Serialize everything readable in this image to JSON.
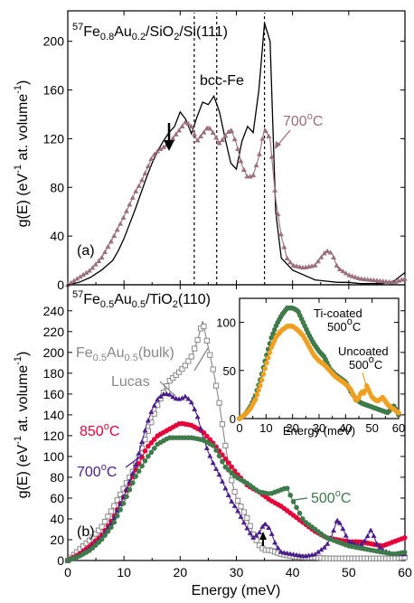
{
  "chart_data": [
    {
      "type": "line",
      "panel_label": "(a)",
      "title_html": {
        "iso": "57",
        "pre": "Fe",
        "s1": "0.8",
        "mid": "Au",
        "s2": "0.2",
        "post": "/SiO",
        "s3": "2",
        "tail": "/Si(111)"
      },
      "ylabel": "g(E) (eV⁻¹ at. volume⁻¹)",
      "ylabel_parts": {
        "a": "g(E) (eV",
        "b": "-1",
        "c": " at. volume",
        "d": "-1",
        "e": ")"
      },
      "xlim": [
        0,
        60
      ],
      "ylim": [
        0,
        225
      ],
      "yticks": [
        0,
        40,
        80,
        120,
        160,
        200
      ],
      "xticks": [
        0,
        10,
        20,
        30,
        40,
        50,
        60
      ],
      "vlines": [
        22.5,
        26.5,
        35
      ],
      "annotations": {
        "bcc": "bcc-Fe",
        "temp": "700",
        "deg": "o",
        "unit": "C"
      },
      "series": [
        {
          "color": "#000000",
          "marker": "none",
          "x": [
            0,
            2,
            4,
            6,
            8,
            9,
            10,
            11,
            12,
            13,
            14,
            15,
            16,
            17,
            18,
            19,
            20,
            21,
            22,
            23,
            24,
            25,
            26,
            27,
            28,
            29,
            30,
            31,
            32,
            33,
            34,
            35,
            36,
            37,
            38,
            40,
            42,
            44,
            46,
            48,
            50,
            52,
            54,
            56,
            58,
            60
          ],
          "y": [
            0,
            2,
            6,
            12,
            20,
            28,
            38,
            50,
            62,
            75,
            88,
            100,
            110,
            118,
            125,
            130,
            142,
            136,
            124,
            138,
            150,
            148,
            155,
            142,
            120,
            100,
            95,
            118,
            130,
            125,
            160,
            215,
            200,
            60,
            22,
            12,
            8,
            4,
            3,
            2,
            2,
            1,
            1,
            1,
            3,
            10
          ]
        },
        {
          "color": "#9C6F7F",
          "marker": "triangle",
          "x": [
            0,
            2,
            4,
            6,
            8,
            10,
            11,
            12,
            13,
            14,
            15,
            16,
            17,
            18,
            19,
            20,
            21,
            22,
            23,
            24,
            25,
            26,
            27,
            28,
            29,
            30,
            31,
            32,
            33,
            34,
            35,
            36,
            37,
            38,
            39,
            40,
            42,
            44,
            45,
            46,
            47,
            48,
            50,
            52,
            54,
            56,
            58,
            60
          ],
          "y": [
            0,
            6,
            12,
            22,
            38,
            56,
            66,
            76,
            84,
            94,
            105,
            110,
            113,
            116,
            122,
            128,
            134,
            130,
            118,
            124,
            130,
            124,
            116,
            122,
            128,
            116,
            98,
            88,
            90,
            105,
            128,
            120,
            70,
            40,
            22,
            16,
            14,
            16,
            22,
            28,
            26,
            14,
            8,
            5,
            4,
            3,
            2,
            5
          ]
        }
      ]
    },
    {
      "type": "line",
      "panel_label": "(b)",
      "title_html": {
        "iso": "57",
        "pre": "Fe",
        "s1": "0.5",
        "mid": "Au",
        "s2": "0.5",
        "post": "/TiO",
        "s3": "2",
        "tail": "(110)"
      },
      "ylabel_parts": {
        "a": "g(E) (eV",
        "b": "-1",
        "c": " at. volume",
        "d": "-1",
        "e": ")"
      },
      "xlabel": "Energy (meV)",
      "xlim": [
        0,
        60
      ],
      "ylim": [
        0,
        265
      ],
      "yticks": [
        0,
        20,
        40,
        60,
        80,
        100,
        120,
        140,
        160,
        180,
        200,
        220,
        240
      ],
      "xticks": [
        0,
        10,
        20,
        30,
        40,
        50,
        60
      ],
      "annotations": {
        "bulk_a": "Fe",
        "bulk_s1": "0.5",
        "bulk_b": "Au",
        "bulk_s2": "0.5",
        "bulk_c": "(bulk)",
        "lucas": "Lucas",
        "t850": "850",
        "t700": "700",
        "t500": "500",
        "deg": "o",
        "unit": "C"
      },
      "series": [
        {
          "name": "Fe0.5Au0.5(bulk)",
          "color": "#888888",
          "marker": "square",
          "x": [
            0,
            2,
            4,
            6,
            8,
            10,
            12,
            14,
            16,
            18,
            20,
            21,
            22,
            23,
            24,
            25,
            26,
            27,
            28,
            29,
            30,
            31,
            32,
            33,
            34,
            35,
            36,
            37,
            38,
            40,
            42,
            44,
            46,
            48,
            50,
            52,
            54,
            56,
            58,
            60
          ],
          "y": [
            0,
            10,
            20,
            32,
            50,
            70,
            90,
            120,
            150,
            172,
            182,
            188,
            196,
            210,
            230,
            205,
            180,
            150,
            112,
            80,
            60,
            50,
            40,
            25,
            15,
            10,
            10,
            8,
            6,
            4,
            3,
            3,
            2,
            2,
            2,
            2,
            2,
            2,
            2,
            3
          ]
        },
        {
          "name": "850°C",
          "color": "#E8003A",
          "marker": "circle",
          "x": [
            0,
            2,
            4,
            6,
            8,
            10,
            12,
            14,
            16,
            18,
            20,
            22,
            24,
            26,
            28,
            30,
            32,
            34,
            36,
            38,
            40,
            42,
            44,
            46,
            48,
            50,
            52,
            54,
            56,
            58,
            60
          ],
          "y": [
            0,
            6,
            14,
            24,
            40,
            62,
            86,
            108,
            120,
            126,
            132,
            130,
            124,
            112,
            98,
            84,
            72,
            66,
            58,
            52,
            44,
            36,
            28,
            22,
            20,
            18,
            18,
            16,
            14,
            18,
            22
          ]
        },
        {
          "name": "700°C",
          "color": "#4B1E8C",
          "marker": "triangle",
          "x": [
            0,
            2,
            4,
            6,
            8,
            10,
            12,
            13,
            14,
            15,
            16,
            17,
            18,
            19,
            20,
            21,
            22,
            23,
            24,
            25,
            26,
            27,
            28,
            29,
            30,
            31,
            32,
            33,
            34,
            35,
            36,
            37,
            38,
            40,
            42,
            44,
            46,
            47,
            48,
            49,
            50,
            52,
            53,
            54,
            55,
            56,
            58,
            60
          ],
          "y": [
            0,
            5,
            12,
            22,
            38,
            62,
            90,
            110,
            130,
            145,
            155,
            160,
            160,
            156,
            155,
            158,
            152,
            140,
            120,
            104,
            92,
            82,
            70,
            58,
            50,
            40,
            30,
            22,
            26,
            36,
            30,
            15,
            8,
            6,
            4,
            6,
            14,
            24,
            40,
            30,
            18,
            14,
            20,
            30,
            16,
            10,
            6,
            6
          ]
        },
        {
          "name": "500°C",
          "color": "#3F7A4A",
          "marker": "circle",
          "x": [
            0,
            2,
            4,
            6,
            8,
            10,
            12,
            14,
            16,
            18,
            20,
            22,
            24,
            26,
            28,
            30,
            32,
            34,
            36,
            38,
            39,
            40,
            42,
            44,
            46,
            48,
            50,
            52,
            54,
            56,
            58,
            60
          ],
          "y": [
            0,
            4,
            10,
            20,
            34,
            56,
            80,
            98,
            112,
            118,
            118,
            118,
            116,
            110,
            90,
            80,
            74,
            66,
            64,
            68,
            70,
            58,
            38,
            30,
            22,
            18,
            14,
            12,
            10,
            8,
            6,
            8
          ]
        }
      ]
    },
    {
      "type": "line",
      "inset": true,
      "xlabel": "Energy (meV)",
      "xlim": [
        0,
        60
      ],
      "ylim": [
        0,
        125
      ],
      "yticks": [
        0,
        50,
        100
      ],
      "xticks": [
        0,
        10,
        20,
        30,
        40,
        50,
        60
      ],
      "annotations": {
        "ti_a": "Ti-coated",
        "ti_b": "500",
        "un_a": "Uncoated",
        "un_b": "500",
        "deg": "o",
        "unit": "C"
      },
      "series": [
        {
          "name": "Ti-coated 500°C",
          "color": "#3F7A4A",
          "marker": "circle",
          "x": [
            0,
            2,
            4,
            6,
            8,
            10,
            12,
            14,
            16,
            18,
            20,
            22,
            24,
            26,
            28,
            30,
            32,
            34,
            36,
            38,
            40,
            42,
            44,
            46,
            48,
            50,
            52,
            54,
            56,
            58,
            60
          ],
          "y": [
            0,
            4,
            12,
            24,
            42,
            64,
            84,
            98,
            108,
            115,
            115,
            112,
            100,
            88,
            78,
            70,
            64,
            52,
            46,
            42,
            38,
            28,
            20,
            16,
            14,
            12,
            10,
            8,
            6,
            14,
            4
          ]
        },
        {
          "name": "Uncoated 500°C",
          "color": "#F0A020",
          "marker": "circle",
          "x": [
            0,
            2,
            4,
            6,
            8,
            10,
            12,
            14,
            16,
            18,
            20,
            22,
            24,
            26,
            28,
            30,
            32,
            34,
            36,
            38,
            40,
            42,
            44,
            45,
            46,
            47,
            48,
            50,
            52,
            54,
            56,
            58,
            60
          ],
          "y": [
            0,
            4,
            10,
            20,
            36,
            56,
            74,
            86,
            92,
            96,
            96,
            92,
            86,
            76,
            66,
            60,
            56,
            50,
            44,
            40,
            36,
            30,
            18,
            22,
            28,
            26,
            34,
            22,
            18,
            22,
            14,
            10,
            6
          ]
        }
      ]
    }
  ]
}
